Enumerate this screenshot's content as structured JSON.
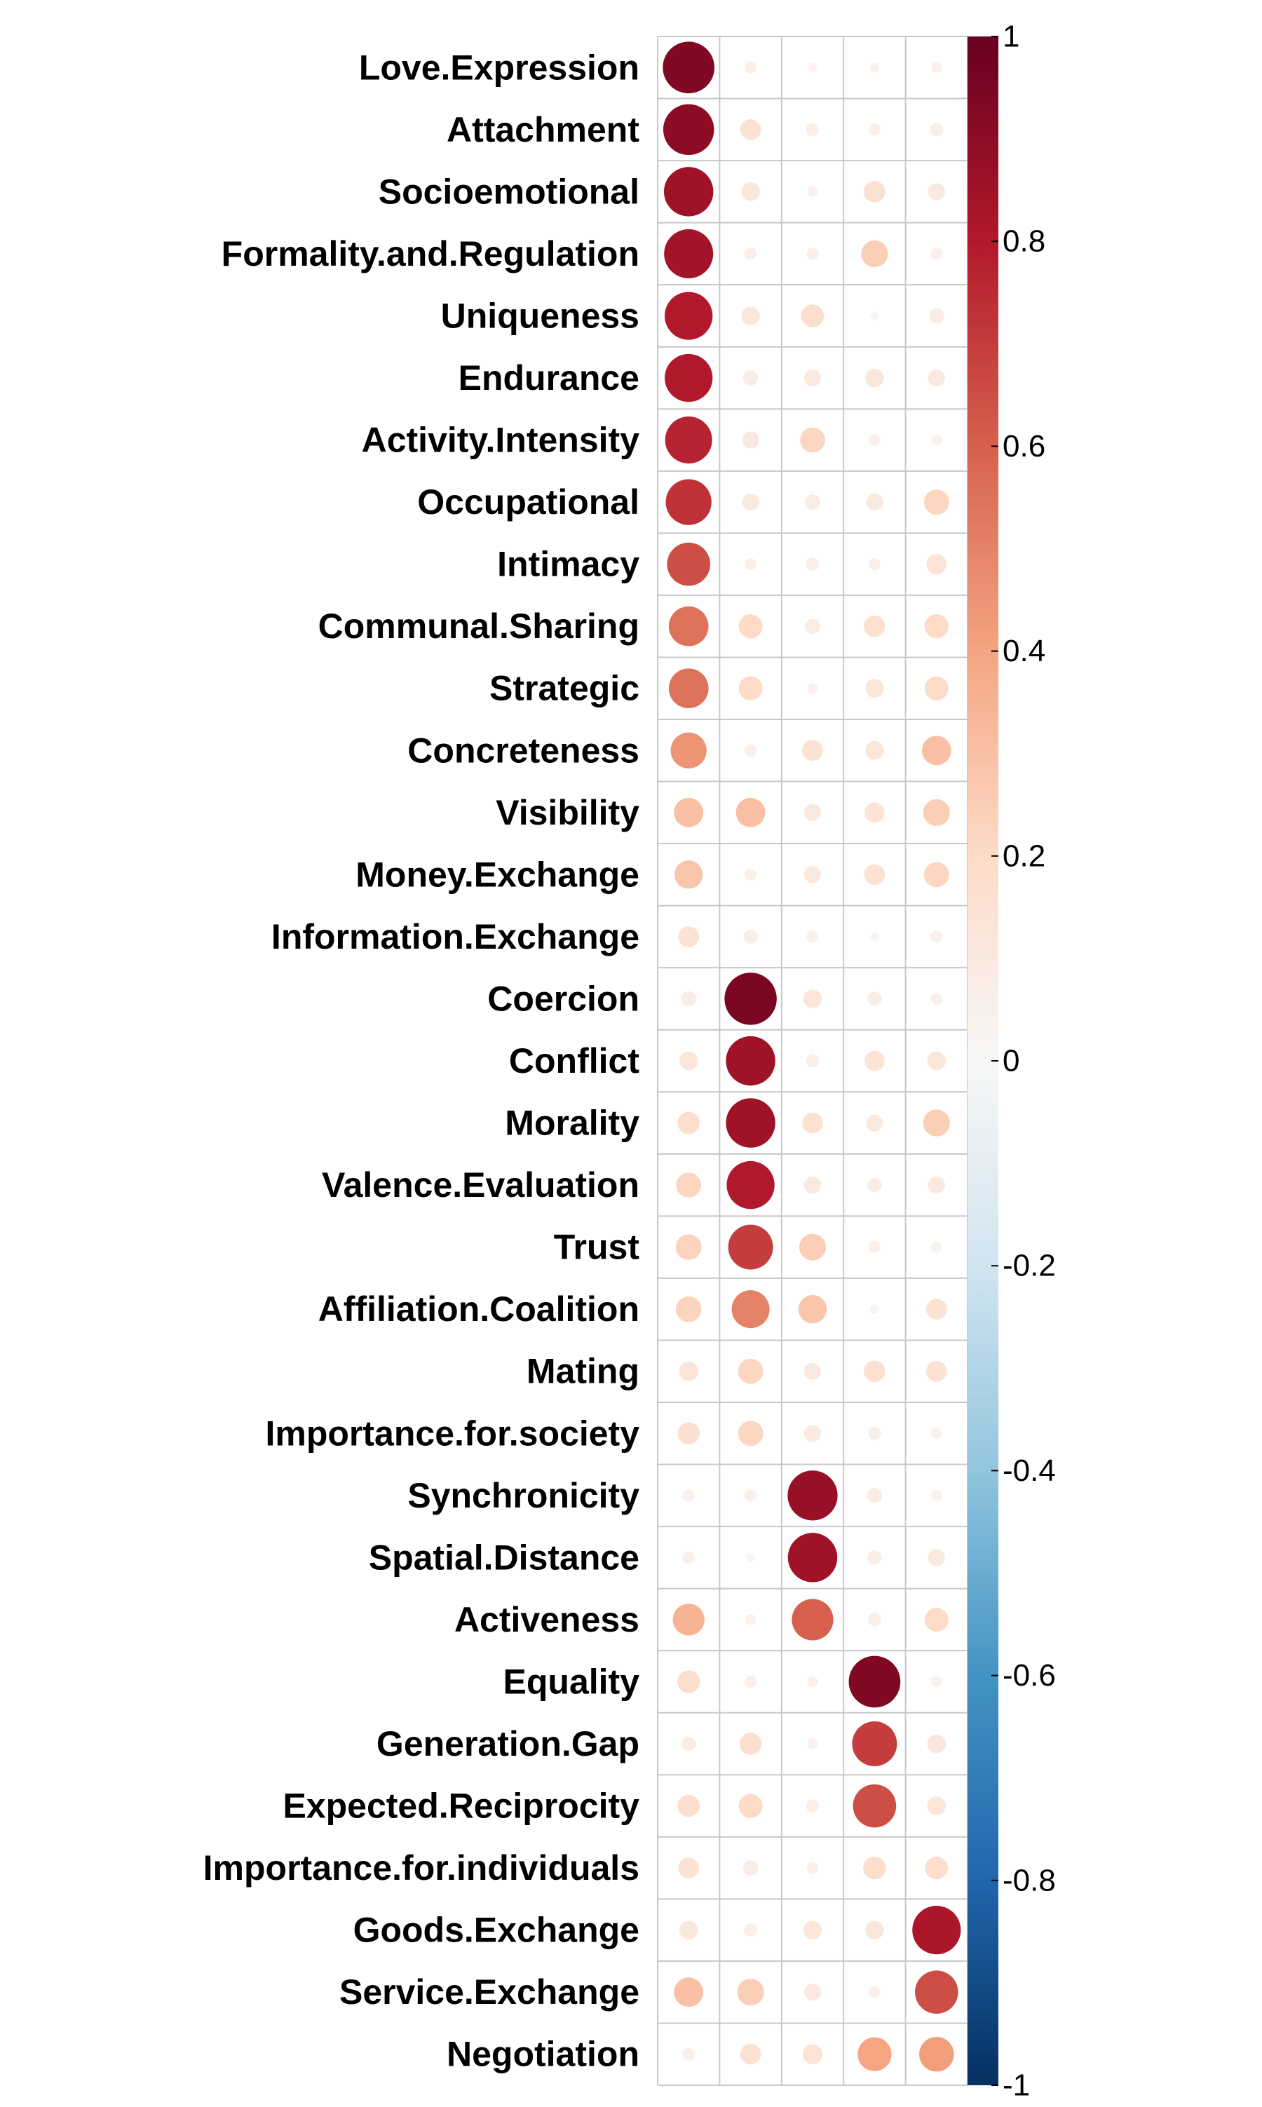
{
  "chart_data": {
    "type": "heatmap",
    "subtype": "correlation-circle-plot",
    "rows": [
      "Love.Expression",
      "Attachment",
      "Socioemotional",
      "Formality.and.Regulation",
      "Uniqueness",
      "Endurance",
      "Activity.Intensity",
      "Occupational",
      "Intimacy",
      "Communal.Sharing",
      "Strategic",
      "Concreteness",
      "Visibility",
      "Money.Exchange",
      "Information.Exchange",
      "Coercion",
      "Conflict",
      "Morality",
      "Valence.Evaluation",
      "Trust",
      "Affiliation.Coalition",
      "Mating",
      "Importance.for.society",
      "Synchronicity",
      "Spatial.Distance",
      "Activeness",
      "Equality",
      "Generation.Gap",
      "Expected.Reciprocity",
      "Importance.for.individuals",
      "Goods.Exchange",
      "Service.Exchange",
      "Negotiation"
    ],
    "columns": [
      "",
      "",
      "",
      "",
      ""
    ],
    "values": [
      [
        0.93,
        0.05,
        0.03,
        0.03,
        0.04
      ],
      [
        0.9,
        0.15,
        0.06,
        0.05,
        0.06
      ],
      [
        0.85,
        0.12,
        0.04,
        0.16,
        0.1
      ],
      [
        0.84,
        0.05,
        0.05,
        0.25,
        0.05
      ],
      [
        0.8,
        0.12,
        0.18,
        0.02,
        0.08
      ],
      [
        0.8,
        0.08,
        0.1,
        0.12,
        0.1
      ],
      [
        0.77,
        0.1,
        0.22,
        0.05,
        0.04
      ],
      [
        0.73,
        0.1,
        0.08,
        0.1,
        0.22
      ],
      [
        0.65,
        0.05,
        0.06,
        0.05,
        0.14
      ],
      [
        0.55,
        0.2,
        0.08,
        0.16,
        0.2
      ],
      [
        0.55,
        0.2,
        0.04,
        0.12,
        0.2
      ],
      [
        0.45,
        0.05,
        0.15,
        0.12,
        0.3
      ],
      [
        0.3,
        0.3,
        0.1,
        0.14,
        0.25
      ],
      [
        0.28,
        0.05,
        0.1,
        0.15,
        0.22
      ],
      [
        0.15,
        0.07,
        0.05,
        0.02,
        0.05
      ],
      [
        0.08,
        0.95,
        0.12,
        0.07,
        0.05
      ],
      [
        0.12,
        0.85,
        0.06,
        0.14,
        0.12
      ],
      [
        0.17,
        0.85,
        0.15,
        0.1,
        0.25
      ],
      [
        0.22,
        0.8,
        0.1,
        0.07,
        0.1
      ],
      [
        0.23,
        0.7,
        0.25,
        0.05,
        0.04
      ],
      [
        0.23,
        0.5,
        0.28,
        0.03,
        0.15
      ],
      [
        0.13,
        0.22,
        0.1,
        0.16,
        0.15
      ],
      [
        0.17,
        0.22,
        0.1,
        0.06,
        0.04
      ],
      [
        0.05,
        0.05,
        0.87,
        0.08,
        0.04
      ],
      [
        0.05,
        0.02,
        0.85,
        0.07,
        0.1
      ],
      [
        0.35,
        0.04,
        0.6,
        0.06,
        0.2
      ],
      [
        0.18,
        0.05,
        0.04,
        0.93,
        0.04
      ],
      [
        0.07,
        0.17,
        0.04,
        0.7,
        0.12
      ],
      [
        0.17,
        0.2,
        0.06,
        0.65,
        0.12
      ],
      [
        0.15,
        0.08,
        0.05,
        0.18,
        0.18
      ],
      [
        0.12,
        0.06,
        0.12,
        0.12,
        0.82
      ],
      [
        0.3,
        0.25,
        0.1,
        0.05,
        0.65
      ],
      [
        0.05,
        0.15,
        0.14,
        0.4,
        0.42
      ]
    ],
    "colorbar": {
      "ticks": [
        "1",
        "0.8",
        "0.6",
        "0.4",
        "0.2",
        "0",
        "-0.2",
        "-0.4",
        "-0.6",
        "-0.8",
        "-1"
      ],
      "range": [
        -1,
        1
      ],
      "colors": {
        "neg1": "#053061",
        "neg08": "#2166AC",
        "neg06": "#4393C3",
        "neg04": "#92C5DE",
        "neg02": "#D1E5F0",
        "zero": "#F7F7F7",
        "pos02": "#FDDBC7",
        "pos04": "#F4A582",
        "pos06": "#D6604D",
        "pos08": "#B2182B",
        "pos1": "#67001F"
      }
    },
    "grid": true,
    "legend_position": "right"
  }
}
